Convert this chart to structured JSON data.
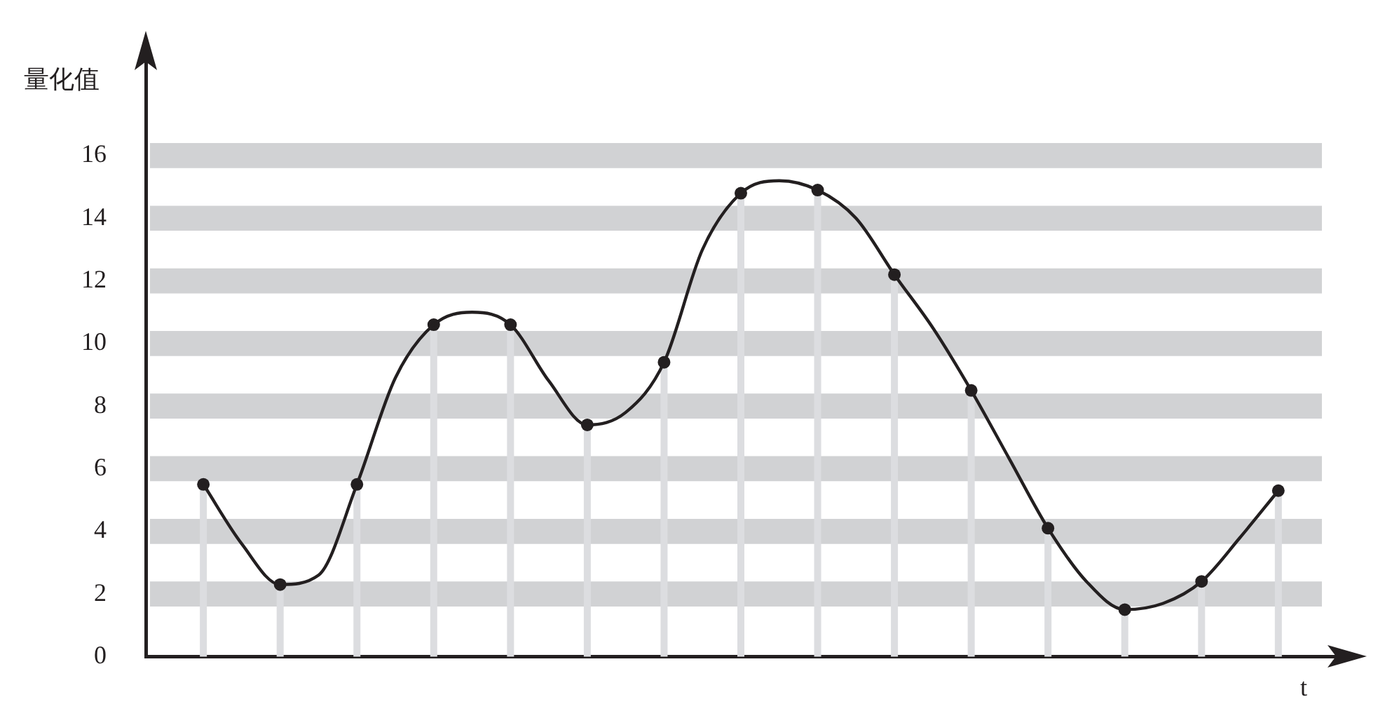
{
  "chart_data": {
    "type": "line",
    "xlabel": "t",
    "ylabel": "量化值",
    "categories": [
      null,
      null,
      null,
      null,
      null,
      null,
      null,
      null,
      null,
      null,
      null,
      null,
      null,
      null,
      null,
      null,
      null,
      null,
      null,
      null,
      null,
      null,
      null,
      null,
      null,
      null,
      null,
      null,
      null,
      null,
      null
    ],
    "ylim": [
      0,
      19
    ],
    "yticks": [
      0,
      2,
      4,
      6,
      8,
      10,
      12,
      14,
      16
    ],
    "tick_labels": "y",
    "grid": false,
    "legend": false,
    "bands": [
      {
        "axis": "y",
        "from": 1.6,
        "to": 2.4,
        "color": "#d1d2d4"
      },
      {
        "axis": "y",
        "from": 3.6,
        "to": 4.4,
        "color": "#d1d2d4"
      },
      {
        "axis": "y",
        "from": 5.6,
        "to": 6.4,
        "color": "#d1d2d4"
      },
      {
        "axis": "y",
        "from": 7.6,
        "to": 8.4,
        "color": "#d1d2d4"
      },
      {
        "axis": "y",
        "from": 9.6,
        "to": 10.4,
        "color": "#d1d2d4"
      },
      {
        "axis": "y",
        "from": 11.6,
        "to": 12.4,
        "color": "#d1d2d4"
      },
      {
        "axis": "y",
        "from": 13.6,
        "to": 14.4,
        "color": "#d1d2d4"
      },
      {
        "axis": "y",
        "from": 15.6,
        "to": 16.4,
        "color": "#d1d2d4"
      }
    ],
    "series": [
      {
        "type": "line",
        "color": "#231f20",
        "marker": "none",
        "line_style": "solid",
        "values": [
          null,
          5.5,
          3.6,
          2.3,
          2.6,
          5.5,
          8.9,
          10.6,
          11.0,
          10.6,
          8.8,
          7.4,
          7.8,
          9.4,
          13.0,
          14.8,
          15.2,
          14.9,
          14.0,
          12.2,
          10.5,
          8.5,
          6.3,
          4.1,
          2.4,
          1.5,
          1.7,
          2.4,
          3.8,
          5.3,
          null
        ]
      },
      {
        "type": "lollipop",
        "color": "#231f20",
        "marker": "circle",
        "values": [
          null,
          5.5,
          null,
          2.3,
          null,
          5.5,
          null,
          10.6,
          null,
          10.6,
          null,
          7.4,
          null,
          9.4,
          null,
          14.8,
          null,
          14.9,
          null,
          12.2,
          null,
          8.5,
          null,
          4.1,
          null,
          1.5,
          null,
          2.4,
          null,
          5.3,
          null
        ]
      }
    ]
  }
}
